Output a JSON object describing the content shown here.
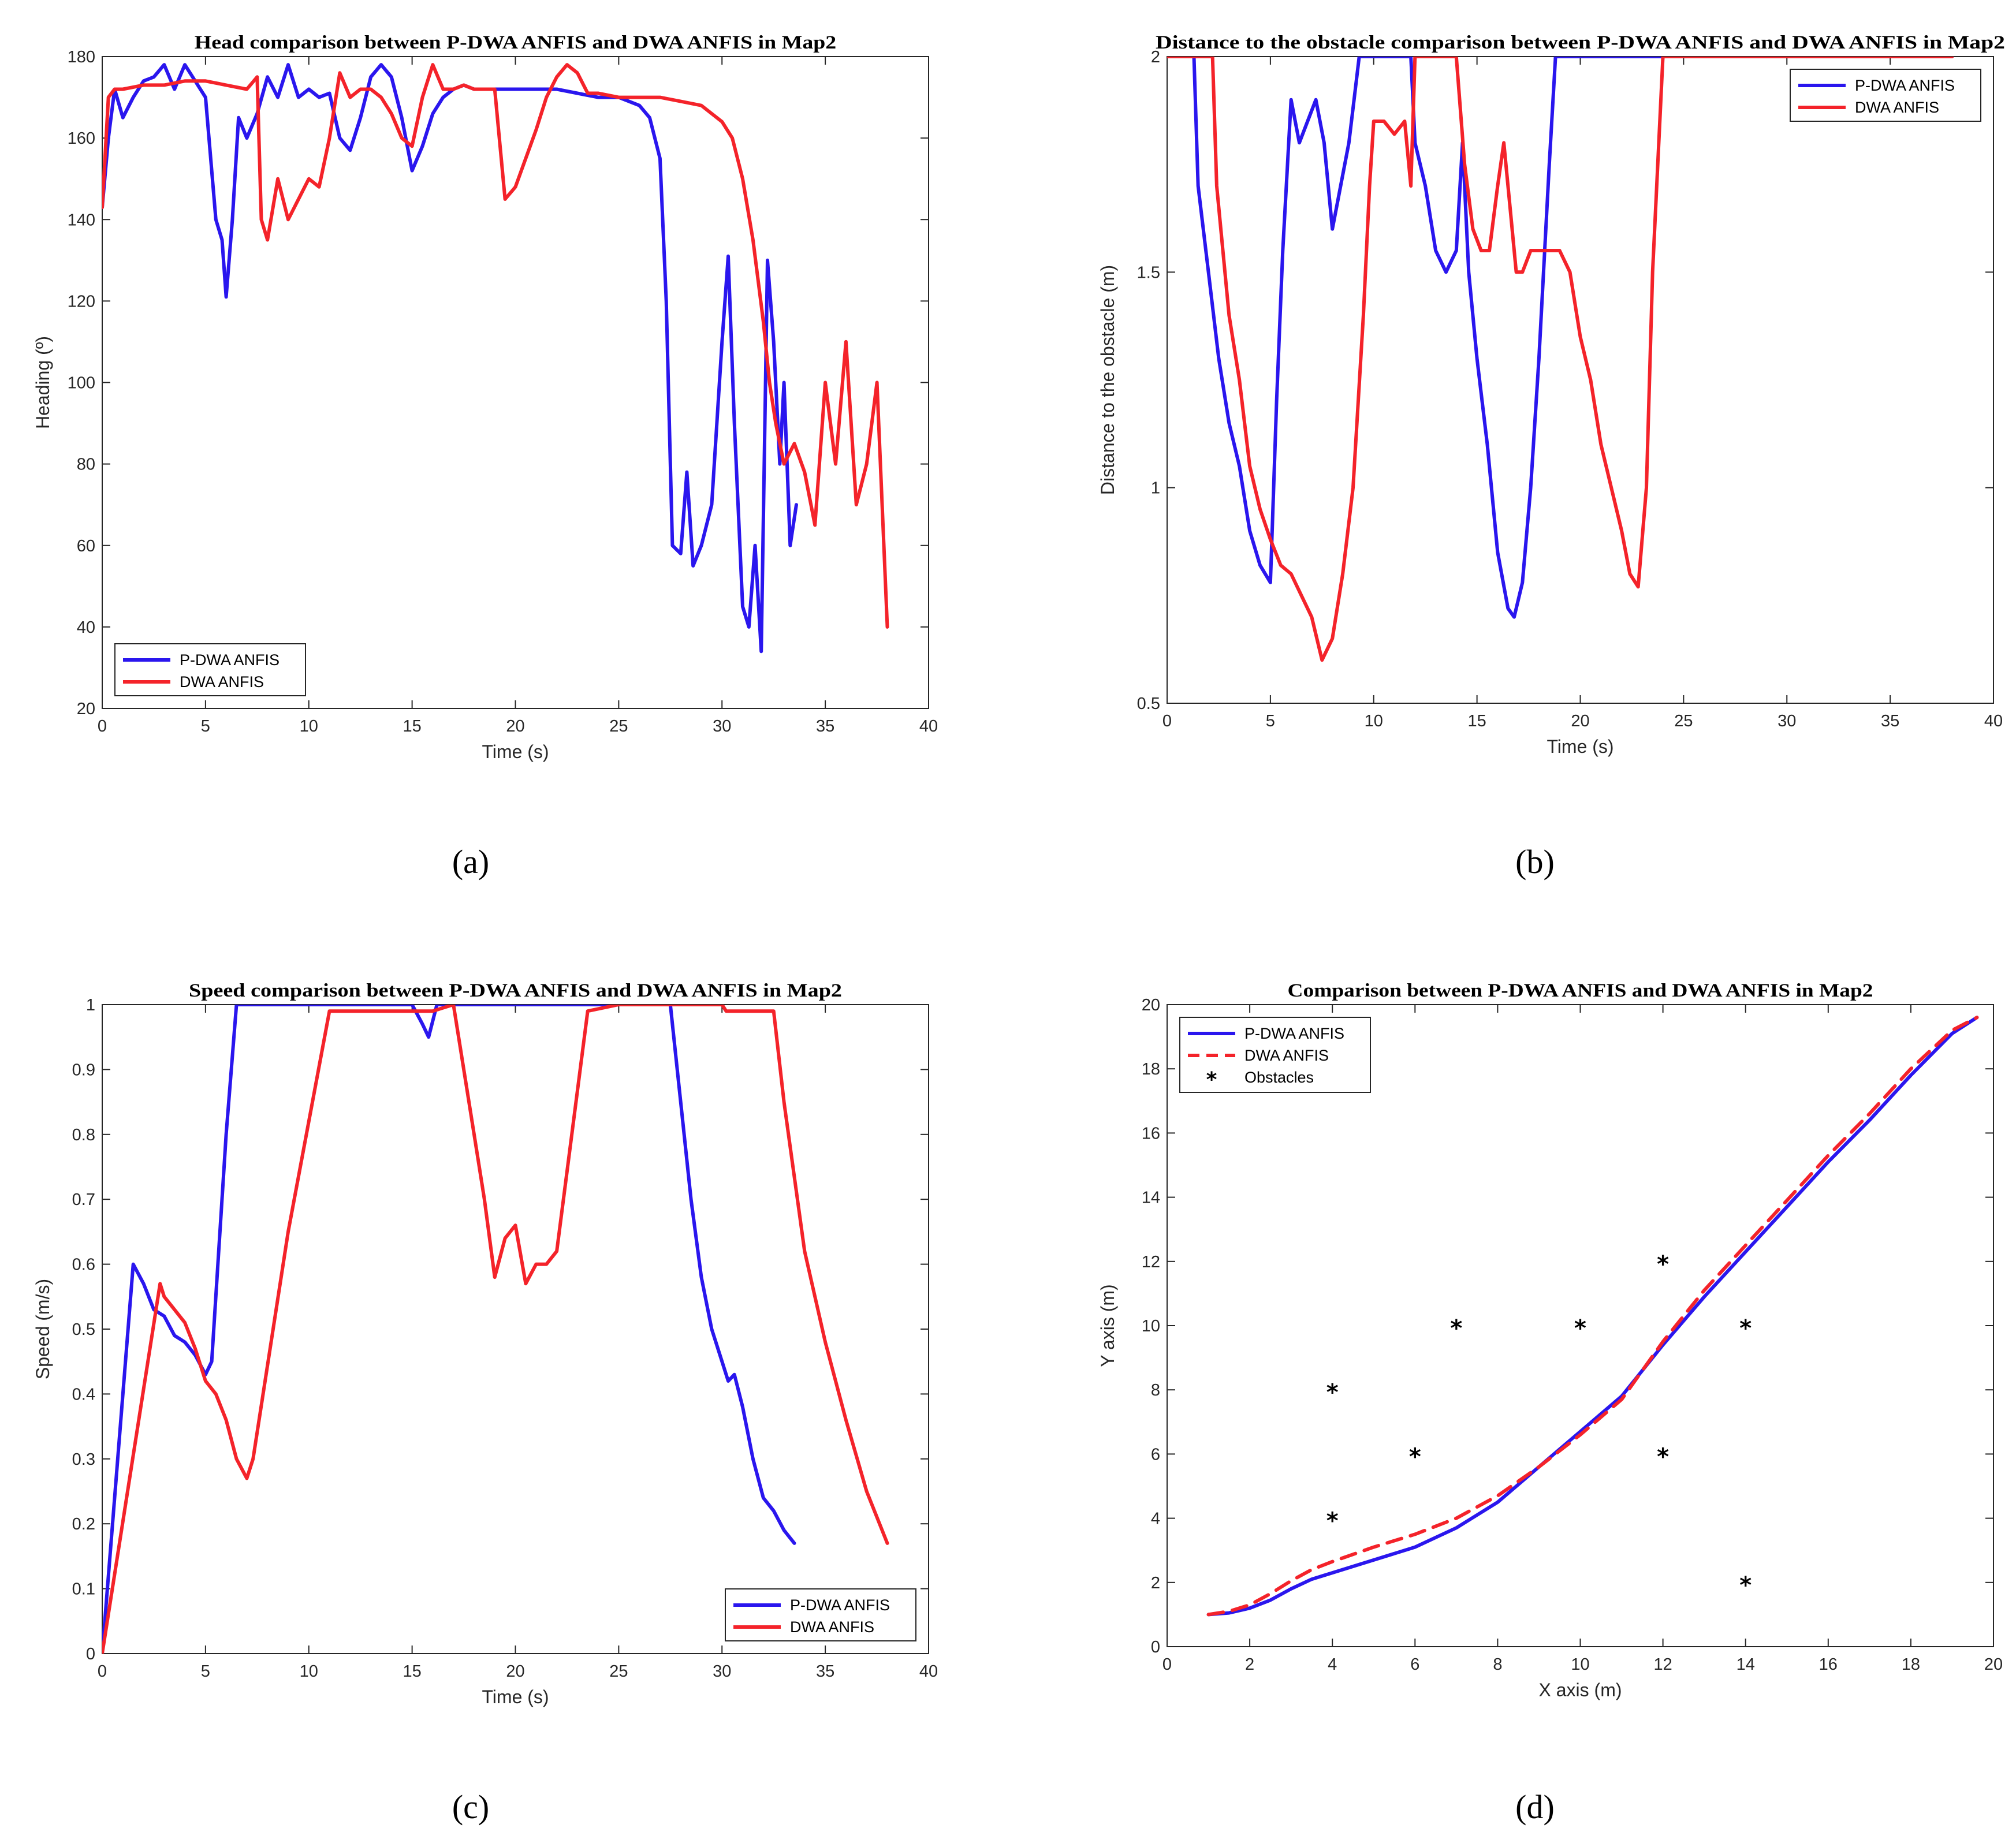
{
  "colors": {
    "pdwa": "#2a16ee",
    "dwa": "#f4232a",
    "axis": "#262626",
    "obstacle": "#000000"
  },
  "captions": [
    "(a)",
    "(b)",
    "(c)",
    "(d)"
  ],
  "chart_data": [
    {
      "type": "line",
      "title": "Head comparison between P-DWA ANFIS and DWA ANFIS in Map2",
      "xlabel": "Time (s)",
      "ylabel": "Heading (º)",
      "xlim": [
        0,
        40
      ],
      "ylim": [
        20,
        180
      ],
      "xticks": [
        0,
        5,
        10,
        15,
        20,
        25,
        30,
        35,
        40
      ],
      "yticks": [
        20,
        40,
        60,
        80,
        100,
        120,
        140,
        160,
        180
      ],
      "legend_position": "bottom-left",
      "series": [
        {
          "name": "P-DWA ANFIS",
          "x": [
            0,
            0.3,
            0.6,
            1,
            1.5,
            2,
            2.5,
            3,
            3.5,
            4,
            4.5,
            5,
            5.5,
            5.8,
            6,
            6.3,
            6.6,
            7,
            7.5,
            8,
            8.5,
            9,
            9.5,
            10,
            10.5,
            11,
            11.5,
            12,
            12.5,
            13,
            13.5,
            14,
            14.5,
            15,
            15.5,
            16,
            16.5,
            17,
            17.5,
            18,
            19,
            20,
            21,
            22,
            23,
            24,
            25,
            26,
            26.5,
            27,
            27.3,
            27.6,
            28,
            28.3,
            28.6,
            29,
            29.5,
            30,
            30.3,
            30.6,
            31,
            31.3,
            31.6,
            31.9,
            32.2,
            32.5,
            32.8,
            33,
            33.3,
            33.6
          ],
          "values": [
            143,
            160,
            172,
            165,
            170,
            174,
            175,
            178,
            172,
            178,
            174,
            170,
            140,
            135,
            121,
            140,
            165,
            160,
            166,
            175,
            170,
            178,
            170,
            172,
            170,
            171,
            160,
            157,
            165,
            175,
            178,
            175,
            165,
            152,
            158,
            166,
            170,
            172,
            173,
            172,
            172,
            172,
            172,
            172,
            171,
            170,
            170,
            168,
            165,
            155,
            120,
            60,
            58,
            78,
            55,
            60,
            70,
            110,
            131,
            90,
            45,
            40,
            60,
            34,
            130,
            110,
            80,
            100,
            60,
            70
          ]
        },
        {
          "name": "DWA ANFIS",
          "x": [
            0,
            0.3,
            0.6,
            1,
            2,
            3,
            4,
            5,
            6,
            7,
            7.5,
            7.7,
            8,
            8.5,
            9,
            9.5,
            10,
            10.5,
            11,
            11.5,
            12,
            12.5,
            13,
            13.5,
            14,
            14.5,
            15,
            15.5,
            16,
            16.5,
            17,
            17.5,
            18,
            18.5,
            19,
            19.5,
            20,
            20.5,
            21,
            21.5,
            22,
            22.5,
            23,
            23.5,
            24,
            25,
            26,
            27,
            28,
            29,
            30,
            30.5,
            31,
            31.5,
            32,
            32.3,
            32.6,
            33,
            33.5,
            34,
            34.5,
            35,
            35.5,
            36,
            36.5,
            37,
            37.5,
            38
          ],
          "values": [
            143,
            170,
            172,
            172,
            173,
            173,
            174,
            174,
            173,
            172,
            175,
            140,
            135,
            150,
            140,
            145,
            150,
            148,
            160,
            176,
            170,
            172,
            172,
            170,
            166,
            160,
            158,
            170,
            178,
            172,
            172,
            173,
            172,
            172,
            172,
            145,
            148,
            155,
            162,
            170,
            175,
            178,
            176,
            171,
            171,
            170,
            170,
            170,
            169,
            168,
            164,
            160,
            150,
            135,
            115,
            100,
            90,
            80,
            85,
            78,
            65,
            100,
            80,
            110,
            70,
            80,
            100,
            40
          ]
        }
      ]
    },
    {
      "type": "line",
      "title": "Distance to the obstacle comparison between P-DWA ANFIS and DWA ANFIS in Map2",
      "xlabel": "Time (s)",
      "ylabel": "Distance to the obstacle (m)",
      "xlim": [
        0,
        40
      ],
      "ylim": [
        0.5,
        2
      ],
      "xticks": [
        0,
        5,
        10,
        15,
        20,
        25,
        30,
        35,
        40
      ],
      "yticks": [
        0.5,
        1,
        1.5,
        2
      ],
      "legend_position": "top-right",
      "series": [
        {
          "name": "P-DWA ANFIS",
          "x": [
            0,
            1.3,
            1.5,
            2,
            2.5,
            3,
            3.5,
            4,
            4.5,
            5,
            5.3,
            5.6,
            6,
            6.4,
            6.8,
            7.2,
            7.6,
            8,
            8.4,
            8.8,
            9.3,
            9.6,
            10,
            11,
            11.8,
            12,
            12.5,
            13,
            13.5,
            14,
            14.3,
            14.6,
            15,
            15.5,
            16,
            16.5,
            16.8,
            17.2,
            17.6,
            18,
            18.5,
            18.8,
            19,
            20,
            25,
            30,
            35,
            38
          ],
          "values": [
            2.0,
            2.0,
            1.7,
            1.5,
            1.3,
            1.15,
            1.05,
            0.9,
            0.82,
            0.78,
            1.2,
            1.55,
            1.9,
            1.8,
            1.85,
            1.9,
            1.8,
            1.6,
            1.7,
            1.8,
            2.0,
            2.0,
            2.0,
            2.0,
            2.0,
            1.8,
            1.7,
            1.55,
            1.5,
            1.55,
            1.8,
            1.5,
            1.3,
            1.1,
            0.85,
            0.72,
            0.7,
            0.78,
            1.0,
            1.3,
            1.75,
            2.0,
            2.0,
            2.0,
            2.0,
            2.0,
            2.0,
            2.0
          ]
        },
        {
          "name": "DWA ANFIS",
          "x": [
            0,
            2.2,
            2.4,
            3,
            3.5,
            4,
            4.5,
            5,
            5.5,
            6,
            6.5,
            7,
            7.5,
            8,
            8.5,
            9,
            9.5,
            9.8,
            10,
            10.5,
            11,
            11.5,
            11.8,
            12,
            13,
            14,
            14.4,
            14.8,
            15.2,
            15.6,
            16,
            16.3,
            16.6,
            16.9,
            17.2,
            17.6,
            18,
            18.5,
            19,
            19.5,
            20,
            20.5,
            21,
            21.5,
            22,
            22.4,
            22.8,
            23.2,
            23.5,
            24,
            30,
            38
          ],
          "values": [
            2.0,
            2.0,
            1.7,
            1.4,
            1.25,
            1.05,
            0.95,
            0.88,
            0.82,
            0.8,
            0.75,
            0.7,
            0.6,
            0.65,
            0.8,
            1.0,
            1.4,
            1.7,
            1.85,
            1.85,
            1.82,
            1.85,
            1.7,
            2.0,
            2.0,
            2.0,
            1.75,
            1.6,
            1.55,
            1.55,
            1.7,
            1.8,
            1.65,
            1.5,
            1.5,
            1.55,
            1.55,
            1.55,
            1.55,
            1.5,
            1.35,
            1.25,
            1.1,
            1.0,
            0.9,
            0.8,
            0.77,
            1.0,
            1.5,
            2.0,
            2.0,
            2.0
          ]
        }
      ]
    },
    {
      "type": "line",
      "title": "Speed comparison between P-DWA ANFIS and DWA ANFIS in Map2",
      "xlabel": "Time (s)",
      "ylabel": "Speed (m/s)",
      "xlim": [
        0,
        40
      ],
      "ylim": [
        0,
        1
      ],
      "xticks": [
        0,
        5,
        10,
        15,
        20,
        25,
        30,
        35,
        40
      ],
      "yticks": [
        0,
        0.1,
        0.2,
        0.3,
        0.4,
        0.5,
        0.6,
        0.7,
        0.8,
        0.9,
        1
      ],
      "legend_position": "bottom-right",
      "series": [
        {
          "name": "P-DWA ANFIS",
          "x": [
            0,
            1.5,
            2,
            2.5,
            3,
            3.5,
            4,
            4.5,
            5,
            5.3,
            5.6,
            6,
            6.5,
            6.8,
            7,
            10,
            15,
            15.5,
            15.8,
            16.2,
            17,
            20,
            25,
            27.5,
            28,
            28.5,
            29,
            29.5,
            30,
            30.3,
            30.6,
            31,
            31.5,
            32,
            32.5,
            33,
            33.5
          ],
          "values": [
            0.0,
            0.6,
            0.57,
            0.53,
            0.52,
            0.49,
            0.48,
            0.46,
            0.43,
            0.45,
            0.6,
            0.8,
            1.0,
            1.0,
            1.0,
            1.0,
            1.0,
            0.97,
            0.95,
            1.0,
            1.0,
            1.0,
            1.0,
            1.0,
            0.85,
            0.7,
            0.58,
            0.5,
            0.45,
            0.42,
            0.43,
            0.38,
            0.3,
            0.24,
            0.22,
            0.19,
            0.17
          ]
        },
        {
          "name": "DWA ANFIS",
          "x": [
            0,
            2.8,
            3,
            3.5,
            4,
            4.5,
            5,
            5.5,
            6,
            6.5,
            7,
            7.3,
            9,
            11,
            15,
            15.5,
            16,
            17,
            18,
            18.5,
            19,
            19.5,
            20,
            20.5,
            21,
            21.5,
            22,
            23.5,
            25,
            27.5,
            28,
            30,
            30.2,
            32.5,
            33,
            34,
            35,
            36,
            37,
            38
          ],
          "values": [
            0.0,
            0.57,
            0.55,
            0.53,
            0.51,
            0.47,
            0.42,
            0.4,
            0.36,
            0.3,
            0.27,
            0.3,
            0.65,
            0.99,
            0.99,
            0.99,
            0.99,
            1.0,
            0.8,
            0.7,
            0.58,
            0.64,
            0.66,
            0.57,
            0.6,
            0.6,
            0.62,
            0.99,
            1.0,
            1.0,
            1.0,
            1.0,
            0.99,
            0.99,
            0.85,
            0.62,
            0.48,
            0.36,
            0.25,
            0.17
          ]
        }
      ]
    },
    {
      "type": "line",
      "title": "Comparison between P-DWA ANFIS and DWA ANFIS in Map2",
      "xlabel": "X axis (m)",
      "ylabel": "Y axis (m)",
      "xlim": [
        0,
        20
      ],
      "ylim": [
        0,
        20
      ],
      "xticks": [
        0,
        2,
        4,
        6,
        8,
        10,
        12,
        14,
        16,
        18,
        20
      ],
      "yticks": [
        0,
        2,
        4,
        6,
        8,
        10,
        12,
        14,
        16,
        18,
        20
      ],
      "legend_position": "top-left",
      "series": [
        {
          "name": "P-DWA ANFIS",
          "x": [
            1,
            1.5,
            2,
            2.5,
            3,
            3.5,
            4,
            5,
            6,
            7,
            8,
            9,
            10,
            11,
            12,
            13,
            14,
            15,
            16,
            17,
            18,
            19,
            19.6
          ],
          "values": [
            1.0,
            1.05,
            1.2,
            1.45,
            1.8,
            2.1,
            2.3,
            2.7,
            3.1,
            3.7,
            4.5,
            5.6,
            6.7,
            7.8,
            9.4,
            10.9,
            12.3,
            13.7,
            15.1,
            16.4,
            17.8,
            19.1,
            19.6
          ]
        },
        {
          "name": "DWA ANFIS",
          "style": "dashed",
          "x": [
            1,
            1.5,
            2,
            2.5,
            3,
            3.5,
            4,
            5,
            6,
            7,
            8,
            9,
            10,
            11,
            12,
            13,
            14,
            15,
            16,
            17,
            18,
            19,
            19.6
          ],
          "values": [
            1.0,
            1.1,
            1.3,
            1.65,
            2.05,
            2.4,
            2.65,
            3.1,
            3.5,
            4.0,
            4.7,
            5.6,
            6.6,
            7.7,
            9.5,
            11.1,
            12.5,
            13.9,
            15.3,
            16.6,
            18.0,
            19.2,
            19.6
          ]
        },
        {
          "name": "Obstacles",
          "style": "markers",
          "x": [
            4,
            4,
            6,
            7,
            10,
            12,
            12,
            14,
            14
          ],
          "values": [
            8,
            4,
            6,
            10,
            10,
            12,
            6,
            10,
            2
          ]
        }
      ]
    }
  ]
}
